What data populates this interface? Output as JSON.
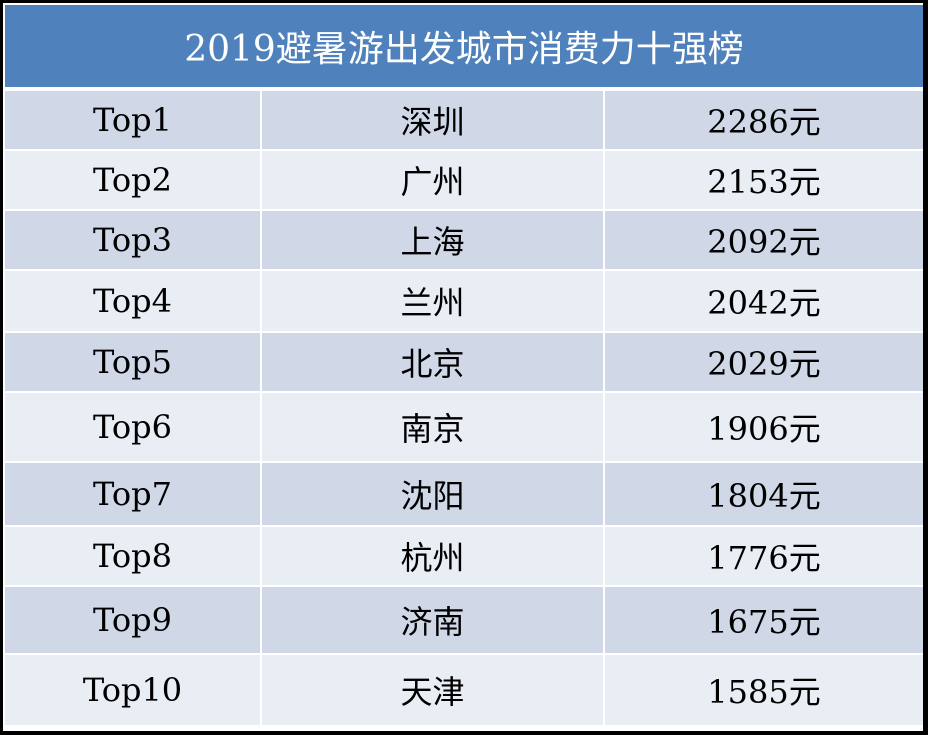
{
  "header": {
    "title": "2019避暑游出发城市消费力十强榜"
  },
  "table": {
    "rows": [
      [
        "Top1",
        "深圳",
        "2286元"
      ],
      [
        "Top2",
        "广州",
        "2153元"
      ],
      [
        "Top3",
        "上海",
        "2092元"
      ],
      [
        "Top4",
        "兰州",
        "2042元"
      ],
      [
        "Top5",
        "北京",
        "2029元"
      ],
      [
        "Top6",
        "南京",
        "1906元"
      ],
      [
        "Top7",
        "沈阳",
        "1804元"
      ],
      [
        "Top8",
        "杭州",
        "1776元"
      ],
      [
        "Top9",
        "济南",
        "1675元"
      ],
      [
        "Top10",
        "天津",
        "1585元"
      ]
    ]
  }
}
